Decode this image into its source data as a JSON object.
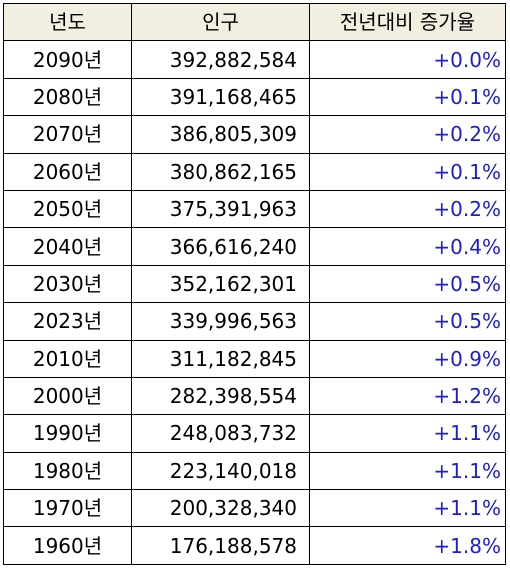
{
  "headers": {
    "year": "년도",
    "population": "인구",
    "change": "전년대비 증가율"
  },
  "rows": [
    {
      "year": "2090년",
      "population": "392,882,584",
      "change": "+0.0%"
    },
    {
      "year": "2080년",
      "population": "391,168,465",
      "change": "+0.1%"
    },
    {
      "year": "2070년",
      "population": "386,805,309",
      "change": "+0.2%"
    },
    {
      "year": "2060년",
      "population": "380,862,165",
      "change": "+0.1%"
    },
    {
      "year": "2050년",
      "population": "375,391,963",
      "change": "+0.2%"
    },
    {
      "year": "2040년",
      "population": "366,616,240",
      "change": "+0.4%"
    },
    {
      "year": "2030년",
      "population": "352,162,301",
      "change": "+0.5%"
    },
    {
      "year": "2023년",
      "population": "339,996,563",
      "change": "+0.5%"
    },
    {
      "year": "2010년",
      "population": "311,182,845",
      "change": "+0.9%"
    },
    {
      "year": "2000년",
      "population": "282,398,554",
      "change": "+1.2%"
    },
    {
      "year": "1990년",
      "population": "248,083,732",
      "change": "+1.1%"
    },
    {
      "year": "1980년",
      "population": "223,140,018",
      "change": "+1.1%"
    },
    {
      "year": "1970년",
      "population": "200,328,340",
      "change": "+1.1%"
    },
    {
      "year": "1960년",
      "population": "176,188,578",
      "change": "+1.8%"
    }
  ],
  "colors": {
    "header_background": "#f2efe0",
    "change_text": "#1e1ecc",
    "border": "#000000"
  }
}
